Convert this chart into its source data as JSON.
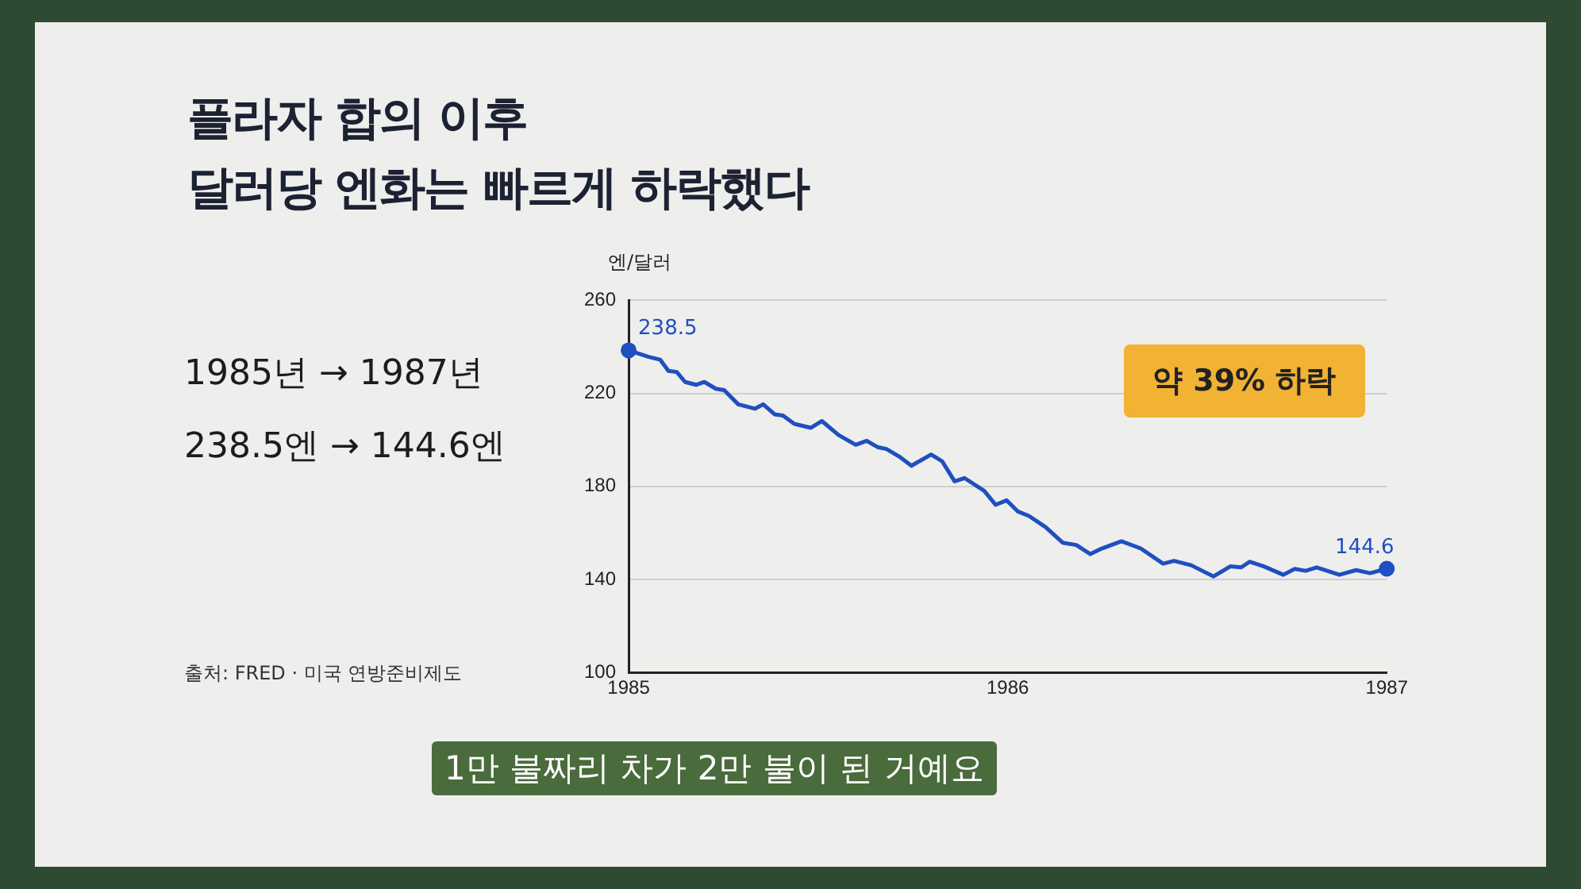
{
  "chart_data": {
    "type": "line",
    "title": "플라자 합의 이후\n달러당 엔화는 빠르게 하락했다",
    "ylabel": "엔/달러",
    "x": [
      1985,
      1985.053,
      1985.083,
      1985.105,
      1985.127,
      1985.149,
      1985.178,
      1985.2,
      1985.23,
      1985.252,
      1985.289,
      1985.333,
      1985.355,
      1985.385,
      1985.407,
      1985.437,
      1985.481,
      1985.51,
      1985.554,
      1985.599,
      1985.628,
      1985.658,
      1985.68,
      1985.717,
      1985.746,
      1985.798,
      1985.827,
      1985.86,
      1985.886,
      1985.938,
      1985.968,
      1985.997,
      1986.027,
      1986.056,
      1986.1,
      1986.145,
      1986.181,
      1986.218,
      1986.248,
      1986.3,
      1986.351,
      1986.41,
      1986.439,
      1986.484,
      1986.543,
      1986.587,
      1986.616,
      1986.638,
      1986.676,
      1986.727,
      1986.757,
      1986.786,
      1986.815,
      1986.875,
      1986.919,
      1986.956,
      1987
    ],
    "series": [
      {
        "color": "#1f4fc0",
        "values": [
          238.5,
          235.7,
          234.5,
          229.7,
          229.2,
          224.9,
          223.7,
          224.9,
          222.0,
          221.4,
          215.3,
          213.4,
          215.3,
          211.0,
          210.5,
          206.9,
          205.2,
          208.1,
          202.1,
          197.9,
          199.6,
          196.8,
          196.1,
          192.5,
          188.9,
          193.7,
          190.8,
          182.2,
          183.6,
          178.1,
          172.1,
          174.0,
          169.2,
          167.3,
          162.5,
          155.8,
          154.8,
          150.9,
          153.3,
          156.4,
          153.3,
          146.8,
          148.0,
          146.1,
          141.3,
          145.6,
          145.2,
          147.6,
          145.6,
          142.0,
          144.5,
          143.7,
          145.2,
          142.0,
          144.0,
          142.7,
          144.6
        ]
      }
    ],
    "xlim": [
      1985,
      1987
    ],
    "xticks": [
      1985,
      1986,
      1987
    ],
    "ylim": [
      100,
      260
    ],
    "yticks": [
      100,
      140,
      180,
      220,
      260
    ],
    "grid": "y",
    "legend": false,
    "marker": "none",
    "line_style": "solid",
    "annotations": [
      {
        "text": "238.5",
        "x": 1985,
        "y": 238.5
      },
      {
        "text": "144.6",
        "x": 1987,
        "y": 144.6
      },
      "약 39% 하락",
      "1985년 → 1987년",
      "238.5엔 → 144.6엔",
      "출처: FRED · 미국 연방준비제도",
      "1만 불짜리 차가 2만 불이 된 거예요"
    ]
  }
}
